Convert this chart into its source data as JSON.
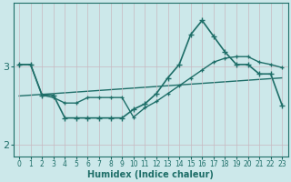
{
  "xlabel": "Humidex (Indice chaleur)",
  "background_color": "#cce8ea",
  "line_color": "#1e6e68",
  "grid_color": "#b8d8da",
  "x": [
    0,
    1,
    2,
    3,
    4,
    5,
    6,
    7,
    8,
    9,
    10,
    11,
    12,
    13,
    14,
    15,
    16,
    17,
    18,
    19,
    20,
    21,
    22,
    23
  ],
  "y_main": [
    3.02,
    3.02,
    2.63,
    2.63,
    2.34,
    2.34,
    2.34,
    2.34,
    2.34,
    2.34,
    2.45,
    2.52,
    2.65,
    2.85,
    3.02,
    3.4,
    3.58,
    3.38,
    3.18,
    3.02,
    3.02,
    2.9,
    2.9,
    2.5
  ],
  "y_line2": [
    3.02,
    3.02,
    2.63,
    2.6,
    2.53,
    2.53,
    2.6,
    2.6,
    2.6,
    2.6,
    2.35,
    2.47,
    2.55,
    2.65,
    2.75,
    2.85,
    2.95,
    3.05,
    3.1,
    3.12,
    3.12,
    3.05,
    3.02,
    2.98
  ],
  "y_trend": [
    2.62,
    2.63,
    2.64,
    2.65,
    2.66,
    2.67,
    2.68,
    2.69,
    2.7,
    2.71,
    2.72,
    2.73,
    2.74,
    2.75,
    2.76,
    2.77,
    2.78,
    2.79,
    2.8,
    2.81,
    2.82,
    2.83,
    2.84,
    2.85
  ],
  "yticks": [
    2,
    3
  ],
  "ylim": [
    1.85,
    3.8
  ],
  "xlim": [
    -0.5,
    23.5
  ],
  "figsize": [
    3.2,
    2.0
  ],
  "dpi": 100
}
